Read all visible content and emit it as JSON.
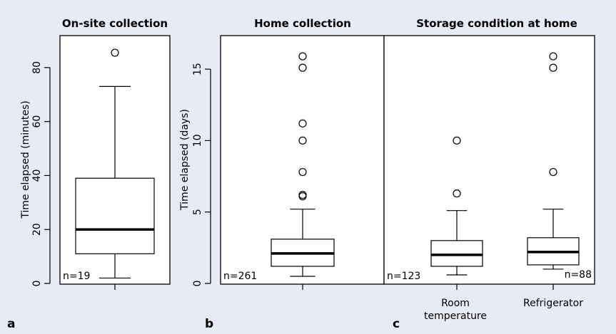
{
  "colors": {
    "background": "#e8eaf6",
    "box_fill": "#ffffff",
    "stroke": "#000000"
  },
  "panels": {
    "a": {
      "letter": "a"
    },
    "b": {
      "letter": "b"
    },
    "c": {
      "letter": "c"
    }
  },
  "chart_data": [
    {
      "type": "box",
      "title": "On-site collection",
      "ylabel": "Time elapsed (minutes)",
      "ylim": [
        0,
        90
      ],
      "yticks": [
        "0",
        "20",
        "40",
        "60",
        "80"
      ],
      "boxes": [
        {
          "label": "",
          "n_label": "n=19",
          "whisker_low": 2,
          "q1": 11,
          "median": 20,
          "q3": 39,
          "whisker_high": 73,
          "outliers": [
            85.5
          ]
        }
      ]
    },
    {
      "type": "box",
      "title": "Home collection",
      "ylabel": "Time elapsed (days)",
      "ylim": [
        0,
        17
      ],
      "yticks": [
        "0",
        "5",
        "10",
        "15"
      ],
      "boxes": [
        {
          "label": "",
          "n_label": "n=261",
          "whisker_low": 0.5,
          "q1": 1.2,
          "median": 2.1,
          "q3": 3.1,
          "whisker_high": 5.2,
          "outliers": [
            6.1,
            6.2,
            7.8,
            10.0,
            11.2,
            15.1,
            15.9
          ]
        }
      ]
    },
    {
      "type": "box",
      "title": "Storage condition at home",
      "ylabel": "",
      "ylim": [
        0,
        17
      ],
      "yticks": [],
      "boxes": [
        {
          "label": "Room\ntemperature",
          "n_label": "n=123",
          "whisker_low": 0.6,
          "q1": 1.2,
          "median": 2.0,
          "q3": 3.0,
          "whisker_high": 5.1,
          "outliers": [
            6.3,
            10.0
          ]
        },
        {
          "label": "Refrigerator",
          "n_label": "n=88",
          "whisker_low": 1.0,
          "q1": 1.3,
          "median": 2.2,
          "q3": 3.2,
          "whisker_high": 5.2,
          "outliers": [
            7.8,
            15.1,
            15.9
          ]
        }
      ]
    }
  ]
}
